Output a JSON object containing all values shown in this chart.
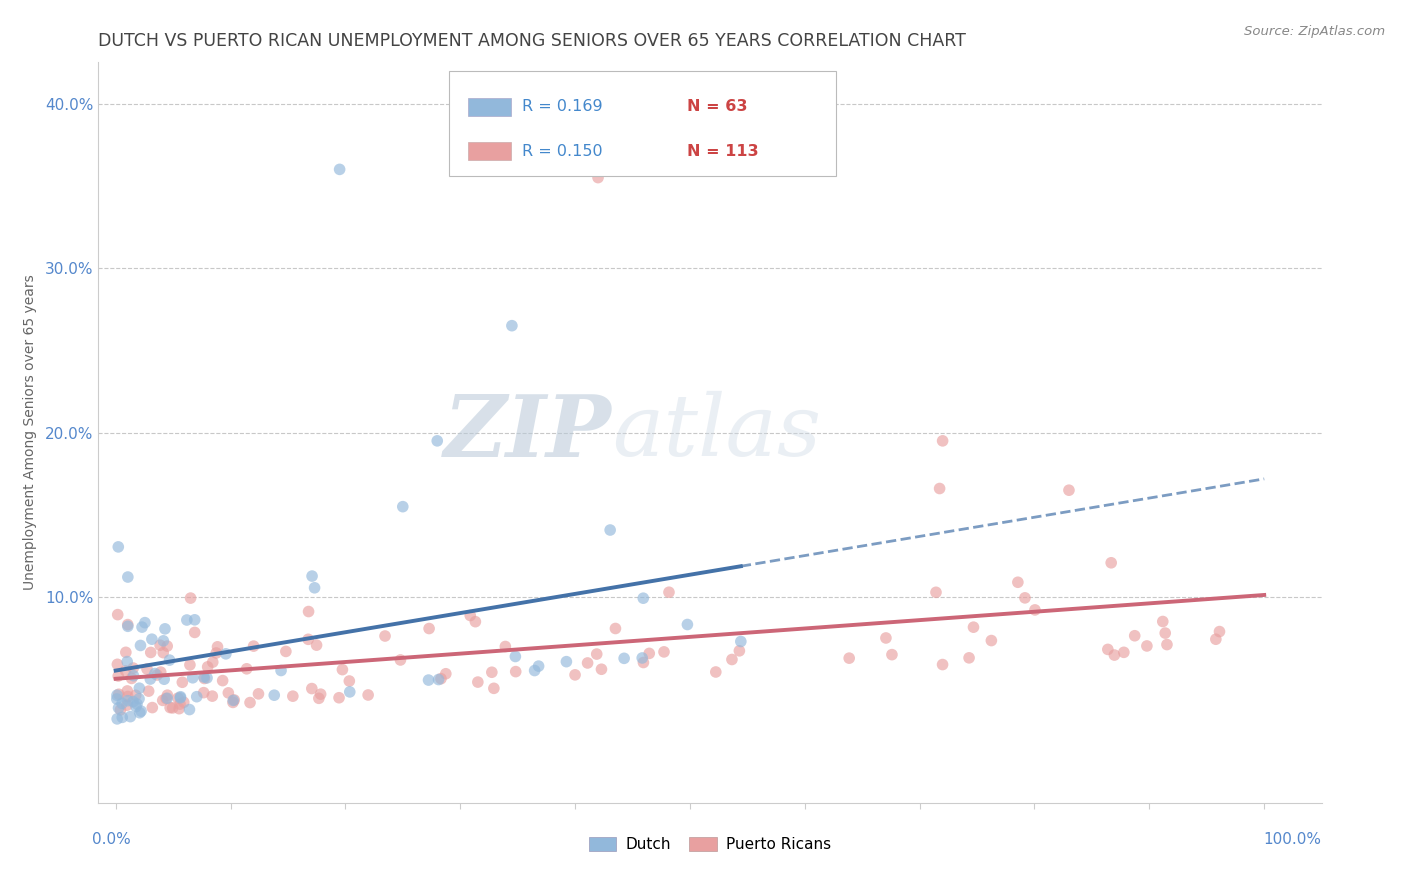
{
  "title": "DUTCH VS PUERTO RICAN UNEMPLOYMENT AMONG SENIORS OVER 65 YEARS CORRELATION CHART",
  "source_text": "Source: ZipAtlas.com",
  "ylabel": "Unemployment Among Seniors over 65 years",
  "ylim": [
    -0.025,
    0.425
  ],
  "xlim": [
    -0.015,
    1.05
  ],
  "dutch_R": 0.169,
  "dutch_N": 63,
  "pr_R": 0.15,
  "pr_N": 113,
  "dutch_color": "#92b8db",
  "pr_color": "#e8a0a0",
  "pr_line_color": "#cc6677",
  "dutch_line_color": "#4472a8",
  "grid_color": "#c8c8c8",
  "axis_label_color": "#5588cc",
  "title_color": "#444444",
  "dot_alpha": 0.65,
  "dot_size": 70,
  "legend_R_color": "#4488cc",
  "legend_N_color": "#cc4444"
}
